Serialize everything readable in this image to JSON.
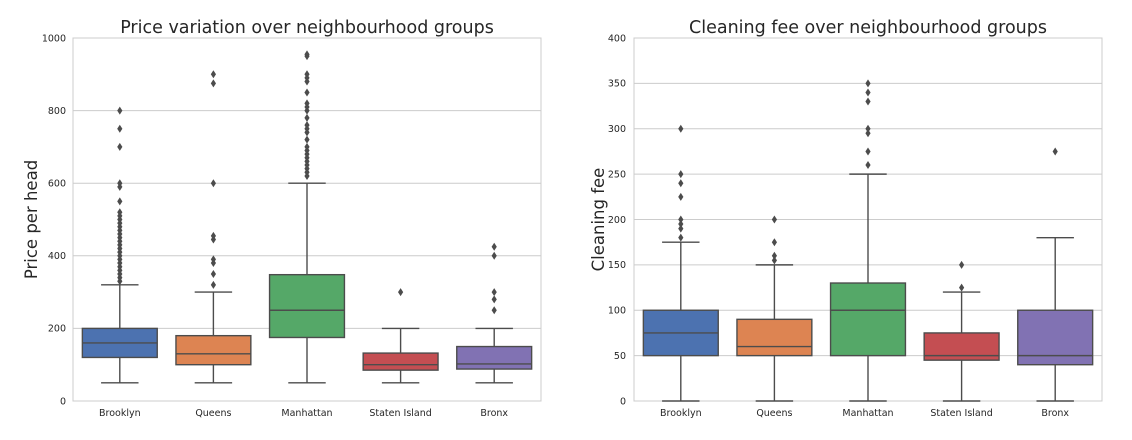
{
  "chart_data": [
    {
      "type": "box",
      "title": "Price variation over neighbourhood groups",
      "xlabel": "",
      "ylabel": "Price per head",
      "ylim": [
        0,
        1000
      ],
      "yticks": [
        0,
        200,
        400,
        600,
        800,
        1000
      ],
      "grid": true,
      "categories": [
        "Brooklyn",
        "Queens",
        "Manhattan",
        "Staten Island",
        "Bronx"
      ],
      "colors": [
        "#4c72b0",
        "#dd8452",
        "#55a868",
        "#c44e52",
        "#8172b3"
      ],
      "boxes": [
        {
          "whislo": 50,
          "q1": 120,
          "med": 160,
          "q3": 200,
          "whishi": 320,
          "fliers": [
            330,
            340,
            350,
            360,
            370,
            380,
            390,
            400,
            410,
            420,
            430,
            440,
            450,
            460,
            470,
            480,
            490,
            500,
            510,
            520,
            550,
            590,
            600,
            700,
            750,
            800
          ]
        },
        {
          "whislo": 50,
          "q1": 100,
          "med": 130,
          "q3": 180,
          "whishi": 300,
          "fliers": [
            320,
            350,
            380,
            390,
            445,
            455,
            600,
            875,
            900
          ]
        },
        {
          "whislo": 50,
          "q1": 175,
          "med": 250,
          "q3": 348,
          "whishi": 600,
          "fliers": [
            620,
            630,
            640,
            650,
            660,
            670,
            680,
            690,
            700,
            720,
            740,
            750,
            760,
            780,
            800,
            810,
            820,
            850,
            880,
            890,
            900,
            950,
            955
          ]
        },
        {
          "whislo": 50,
          "q1": 85,
          "med": 100,
          "q3": 132,
          "whishi": 200,
          "fliers": [
            300
          ]
        },
        {
          "whislo": 50,
          "q1": 88,
          "med": 102,
          "q3": 150,
          "whishi": 200,
          "fliers": [
            250,
            280,
            300,
            400,
            425
          ]
        }
      ]
    },
    {
      "type": "box",
      "title": "Cleaning fee over neighbourhood groups",
      "xlabel": "",
      "ylabel": "Cleaning fee",
      "ylim": [
        0,
        400
      ],
      "yticks": [
        0,
        50,
        100,
        150,
        200,
        250,
        300,
        350,
        400
      ],
      "grid": true,
      "categories": [
        "Brooklyn",
        "Queens",
        "Manhattan",
        "Staten Island",
        "Bronx"
      ],
      "colors": [
        "#4c72b0",
        "#dd8452",
        "#55a868",
        "#c44e52",
        "#8172b3"
      ],
      "boxes": [
        {
          "whislo": 0,
          "q1": 50,
          "med": 75,
          "q3": 100,
          "whishi": 175,
          "fliers": [
            180,
            190,
            195,
            200,
            225,
            240,
            250,
            300
          ]
        },
        {
          "whislo": 0,
          "q1": 50,
          "med": 60,
          "q3": 90,
          "whishi": 150,
          "fliers": [
            155,
            160,
            175,
            200
          ]
        },
        {
          "whislo": 0,
          "q1": 50,
          "med": 100,
          "q3": 130,
          "whishi": 250,
          "fliers": [
            260,
            275,
            295,
            300,
            330,
            340,
            350
          ]
        },
        {
          "whislo": 0,
          "q1": 45,
          "med": 50,
          "q3": 75,
          "whishi": 120,
          "fliers": [
            125,
            150
          ]
        },
        {
          "whislo": 0,
          "q1": 40,
          "med": 50,
          "q3": 100,
          "whishi": 180,
          "fliers": [
            275
          ]
        }
      ]
    }
  ]
}
